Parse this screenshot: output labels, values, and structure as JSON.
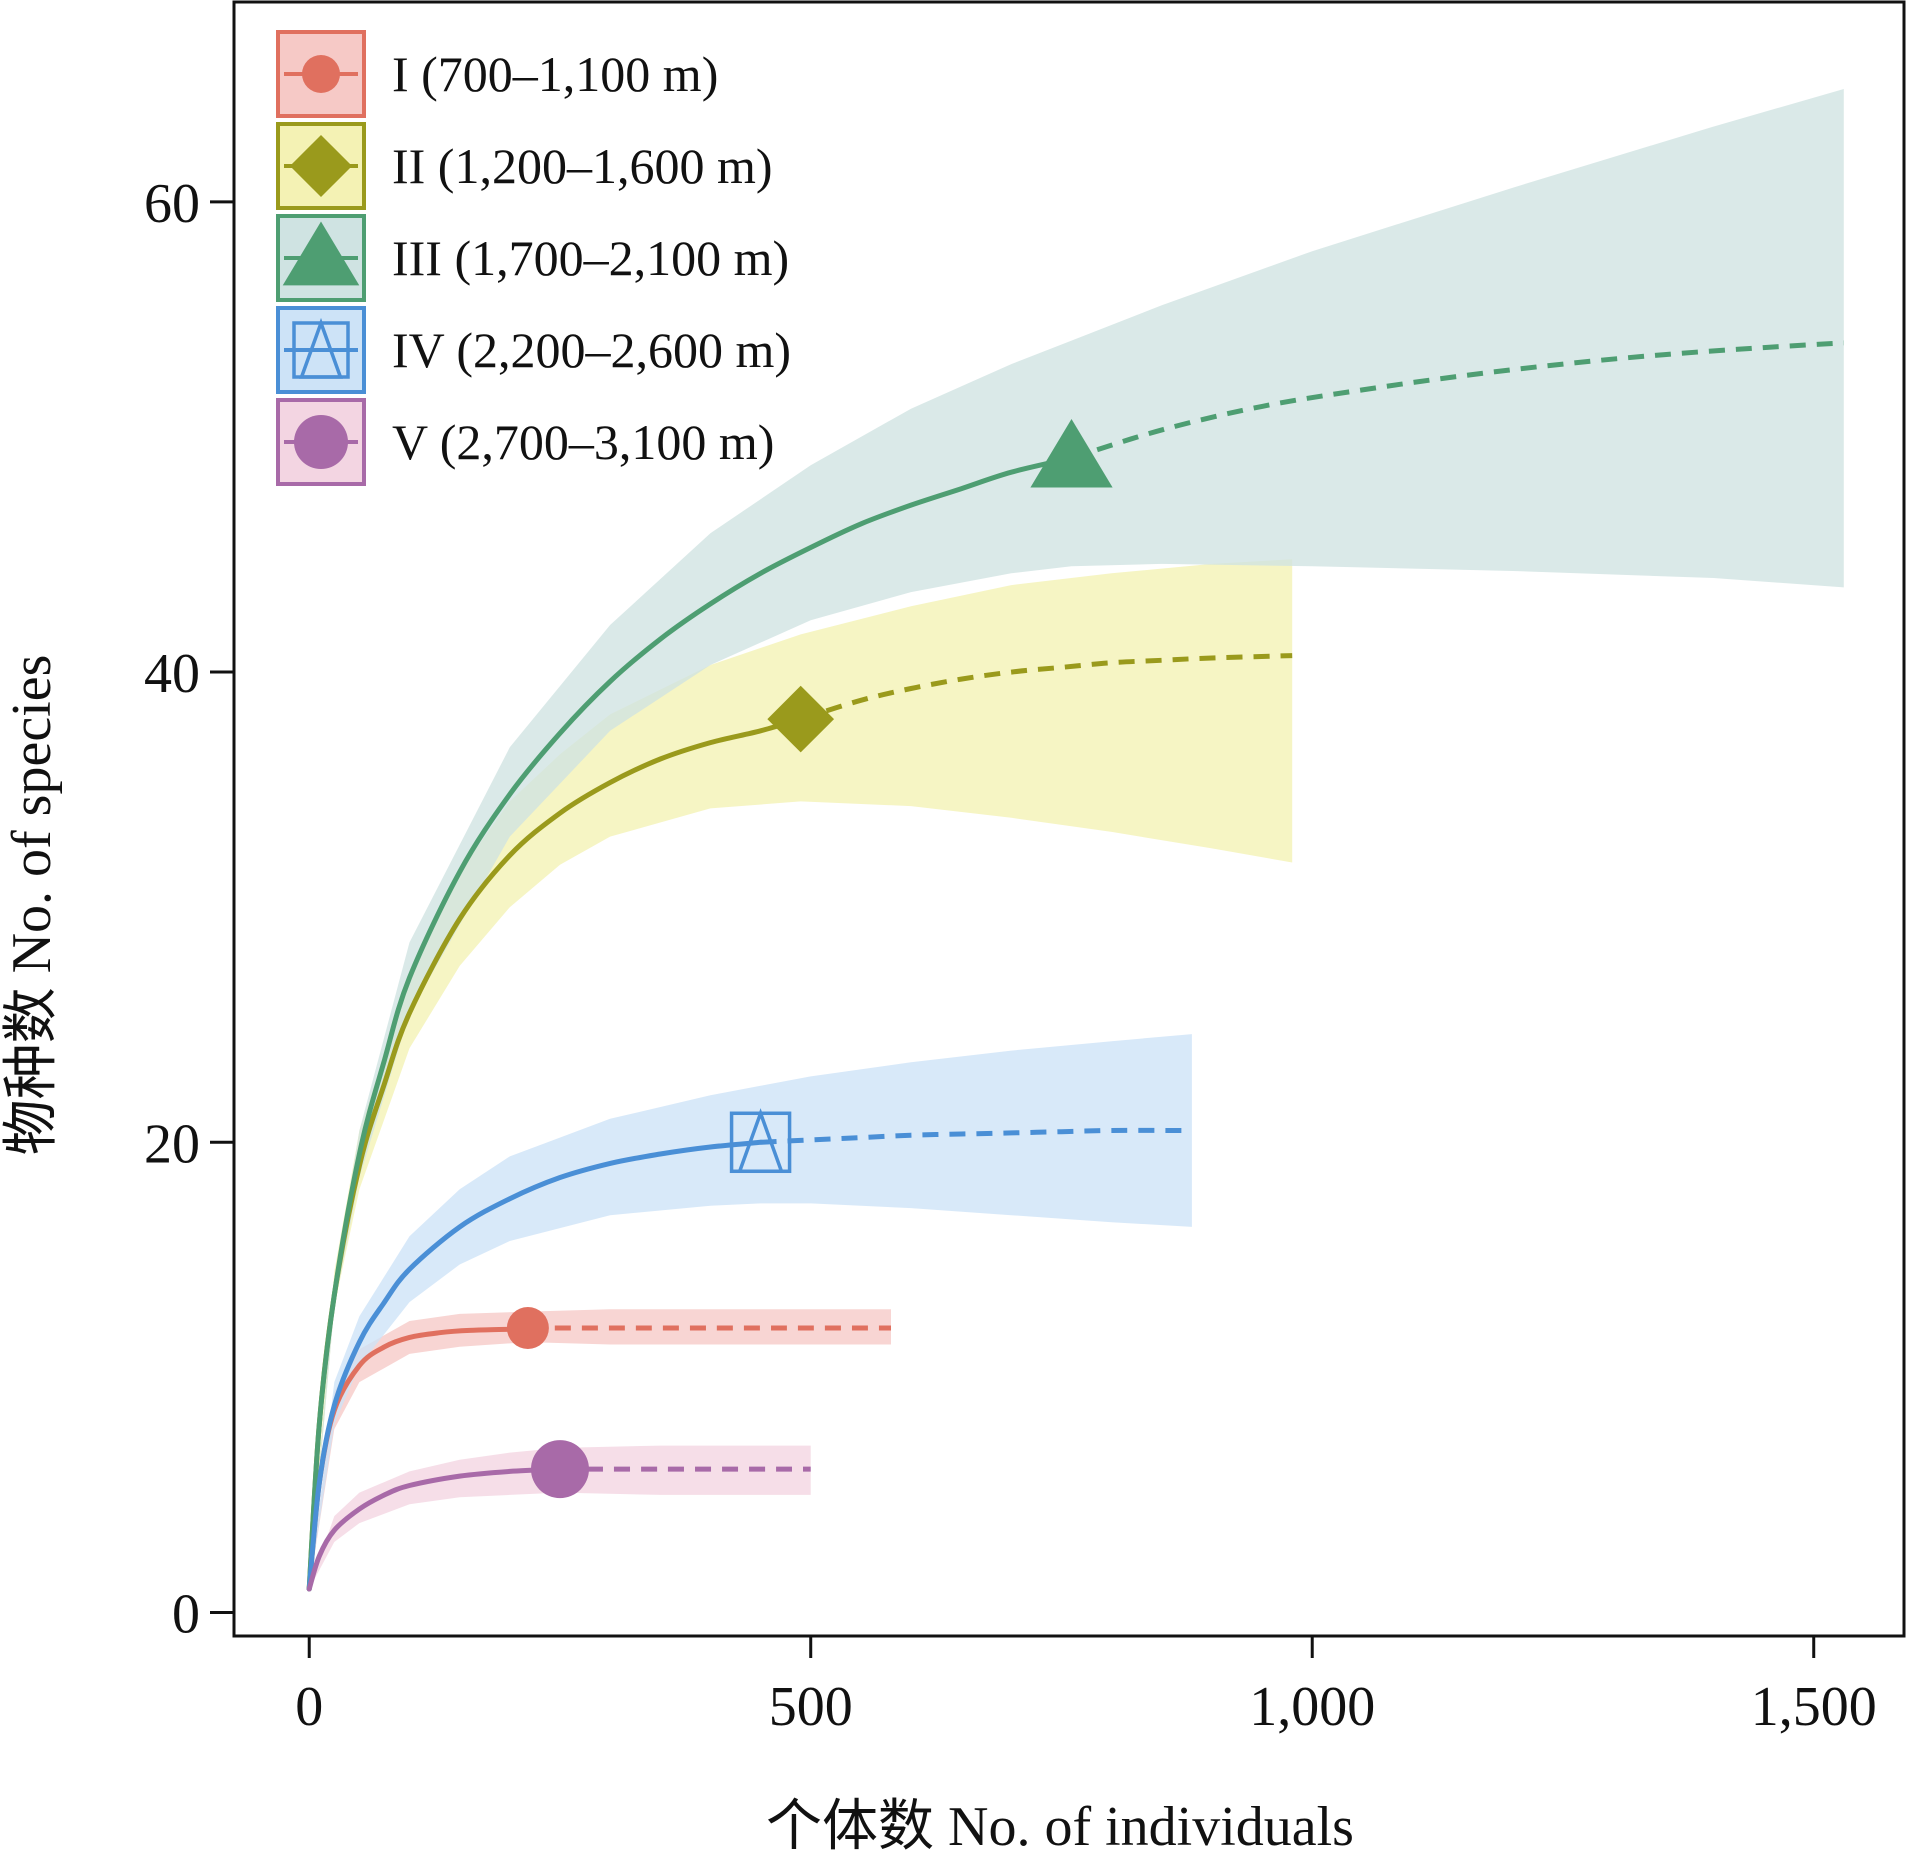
{
  "chart_data": {
    "type": "line",
    "xlabel": "个体数 No. of individuals",
    "ylabel": "物种数 No. of species",
    "xlim": [
      -75,
      1590
    ],
    "ylim": [
      -1,
      68.5
    ],
    "x_ticks": [
      0,
      500,
      1000,
      1500
    ],
    "x_tick_labels": [
      "0",
      "500",
      "1,000",
      "1,500"
    ],
    "y_ticks": [
      0,
      20,
      40,
      60
    ],
    "y_tick_labels": [
      "0",
      "20",
      "40",
      "60"
    ],
    "legend_placement": "top-left",
    "line_styles": {
      "interpolated": "solid",
      "extrapolated": "dashed"
    },
    "series": [
      {
        "name": "I (700–1,100 m)",
        "color": "#e0705f",
        "band_color": "#f6c9c6",
        "marker": "filled-circle",
        "interpolated": {
          "x": [
            0,
            10,
            25,
            50,
            75,
            100,
            130,
            160,
            200,
            218
          ],
          "y": [
            1,
            5.5,
            8.6,
            10.5,
            11.3,
            11.7,
            11.9,
            12.0,
            12.05,
            12.1
          ]
        },
        "extrapolated": {
          "x": [
            218,
            300,
            400,
            500,
            580
          ],
          "y": [
            12.1,
            12.1,
            12.1,
            12.1,
            12.1
          ]
        },
        "observed": {
          "x": 218,
          "y": 12.1
        },
        "ci_lower": {
          "x": [
            0,
            25,
            50,
            100,
            150,
            218,
            300,
            400,
            500,
            580
          ],
          "y": [
            1,
            7.8,
            9.8,
            11.0,
            11.3,
            11.5,
            11.4,
            11.4,
            11.4,
            11.4
          ]
        },
        "ci_upper": {
          "x": [
            0,
            25,
            50,
            100,
            150,
            218,
            300,
            400,
            500,
            580
          ],
          "y": [
            1,
            9.4,
            11.2,
            12.4,
            12.7,
            12.8,
            12.9,
            12.9,
            12.9,
            12.9
          ]
        }
      },
      {
        "name": "II (1,200–1,600 m)",
        "color": "#9a9a1c",
        "band_color": "#f4f2b4",
        "marker": "filled-diamond",
        "interpolated": {
          "x": [
            0,
            10,
            25,
            50,
            75,
            100,
            150,
            200,
            250,
            300,
            350,
            400,
            450,
            490
          ],
          "y": [
            1,
            8,
            13.5,
            19,
            22.5,
            25.5,
            29.5,
            32.2,
            34.0,
            35.3,
            36.3,
            37.0,
            37.5,
            38.0
          ]
        },
        "extrapolated": {
          "x": [
            490,
            550,
            600,
            650,
            700,
            750,
            800,
            850,
            900,
            980
          ],
          "y": [
            38.0,
            38.8,
            39.3,
            39.7,
            40.0,
            40.2,
            40.4,
            40.5,
            40.6,
            40.7
          ]
        },
        "observed": {
          "x": 490,
          "y": 38.0
        },
        "ci_lower": {
          "x": [
            0,
            25,
            50,
            100,
            150,
            200,
            250,
            300,
            400,
            490,
            600,
            700,
            800,
            900,
            980
          ],
          "y": [
            1,
            13,
            18,
            24,
            27.5,
            30,
            31.8,
            33.0,
            34.2,
            34.5,
            34.3,
            33.8,
            33.2,
            32.5,
            31.9
          ]
        },
        "ci_upper": {
          "x": [
            0,
            25,
            50,
            100,
            150,
            200,
            250,
            300,
            400,
            490,
            600,
            700,
            800,
            900,
            980
          ],
          "y": [
            1,
            14.5,
            20.5,
            27,
            31.5,
            34.5,
            36.5,
            38.2,
            40.3,
            41.6,
            42.8,
            43.7,
            44.2,
            44.6,
            44.8
          ]
        }
      },
      {
        "name": "III (1,700–2,100 m)",
        "color": "#4e9e72",
        "band_color": "#cfe3e2",
        "marker": "filled-triangle",
        "interpolated": {
          "x": [
            0,
            10,
            25,
            50,
            75,
            100,
            150,
            200,
            250,
            300,
            350,
            400,
            450,
            500,
            550,
            600,
            650,
            700,
            760
          ],
          "y": [
            1,
            8,
            13.5,
            19.5,
            23.5,
            27,
            31.5,
            34.8,
            37.4,
            39.6,
            41.4,
            42.9,
            44.2,
            45.3,
            46.3,
            47.1,
            47.8,
            48.5,
            49.1
          ]
        },
        "extrapolated": {
          "x": [
            760,
            850,
            950,
            1050,
            1150,
            1250,
            1350,
            1450,
            1530
          ],
          "y": [
            49.1,
            50.3,
            51.3,
            52.0,
            52.6,
            53.1,
            53.5,
            53.8,
            54.0
          ]
        },
        "observed": {
          "x": 760,
          "y": 49.1
        },
        "ci_lower": {
          "x": [
            0,
            25,
            50,
            100,
            200,
            300,
            400,
            500,
            600,
            700,
            760,
            850,
            1000,
            1200,
            1400,
            1530
          ],
          "y": [
            1,
            13,
            18.5,
            25.5,
            33,
            37.5,
            40.3,
            42.2,
            43.4,
            44.2,
            44.5,
            44.6,
            44.5,
            44.3,
            44.0,
            43.6
          ]
        },
        "ci_upper": {
          "x": [
            0,
            25,
            50,
            100,
            200,
            300,
            400,
            500,
            600,
            700,
            760,
            850,
            1000,
            1200,
            1400,
            1530
          ],
          "y": [
            1,
            14,
            20.5,
            28.5,
            36.8,
            42.0,
            45.9,
            48.8,
            51.2,
            53.1,
            54.1,
            55.6,
            57.9,
            60.6,
            63.2,
            64.8
          ]
        }
      },
      {
        "name": "IV (2,200–2,600 m)",
        "color": "#4a8fd6",
        "band_color": "#cde3f7",
        "marker": "open-square-triangle",
        "interpolated": {
          "x": [
            0,
            10,
            25,
            50,
            75,
            100,
            150,
            200,
            250,
            300,
            350,
            400,
            450
          ],
          "y": [
            1,
            5.5,
            8.8,
            11.5,
            13.2,
            14.6,
            16.4,
            17.6,
            18.5,
            19.1,
            19.5,
            19.8,
            20.0
          ]
        },
        "extrapolated": {
          "x": [
            450,
            500,
            550,
            600,
            650,
            700,
            750,
            800,
            880
          ],
          "y": [
            20.0,
            20.1,
            20.2,
            20.3,
            20.35,
            20.4,
            20.45,
            20.5,
            20.5
          ]
        },
        "observed": {
          "x": 450,
          "y": 20.0
        },
        "ci_lower": {
          "x": [
            0,
            25,
            50,
            100,
            150,
            200,
            300,
            400,
            450,
            500,
            600,
            700,
            800,
            880
          ],
          "y": [
            1,
            8,
            10.5,
            13.2,
            14.8,
            15.8,
            16.9,
            17.3,
            17.4,
            17.4,
            17.2,
            16.9,
            16.6,
            16.4
          ]
        },
        "ci_upper": {
          "x": [
            0,
            25,
            50,
            100,
            150,
            200,
            300,
            400,
            450,
            500,
            600,
            700,
            800,
            880
          ],
          "y": [
            1,
            9.8,
            12.6,
            16.0,
            18.0,
            19.4,
            21.0,
            22.0,
            22.4,
            22.8,
            23.4,
            23.9,
            24.3,
            24.6
          ]
        }
      },
      {
        "name": "V (2,700–3,100 m)",
        "color": "#a86aa8",
        "band_color": "#f3d5e2",
        "marker": "filled-circle",
        "interpolated": {
          "x": [
            0,
            10,
            25,
            50,
            75,
            100,
            150,
            200,
            250
          ],
          "y": [
            1,
            2.4,
            3.5,
            4.4,
            5.0,
            5.4,
            5.8,
            6.0,
            6.1
          ]
        },
        "extrapolated": {
          "x": [
            250,
            350,
            450,
            500
          ],
          "y": [
            6.1,
            6.1,
            6.1,
            6.1
          ]
        },
        "observed": {
          "x": 250,
          "y": 6.1
        },
        "ci_lower": {
          "x": [
            0,
            25,
            50,
            100,
            150,
            200,
            250,
            350,
            500
          ],
          "y": [
            1,
            3.0,
            3.8,
            4.6,
            4.9,
            5.0,
            5.1,
            5.0,
            5.0
          ]
        },
        "ci_upper": {
          "x": [
            0,
            25,
            50,
            100,
            150,
            200,
            250,
            350,
            500
          ],
          "y": [
            1,
            4.1,
            5.1,
            6.0,
            6.5,
            6.8,
            7.0,
            7.1,
            7.1
          ]
        }
      }
    ]
  }
}
